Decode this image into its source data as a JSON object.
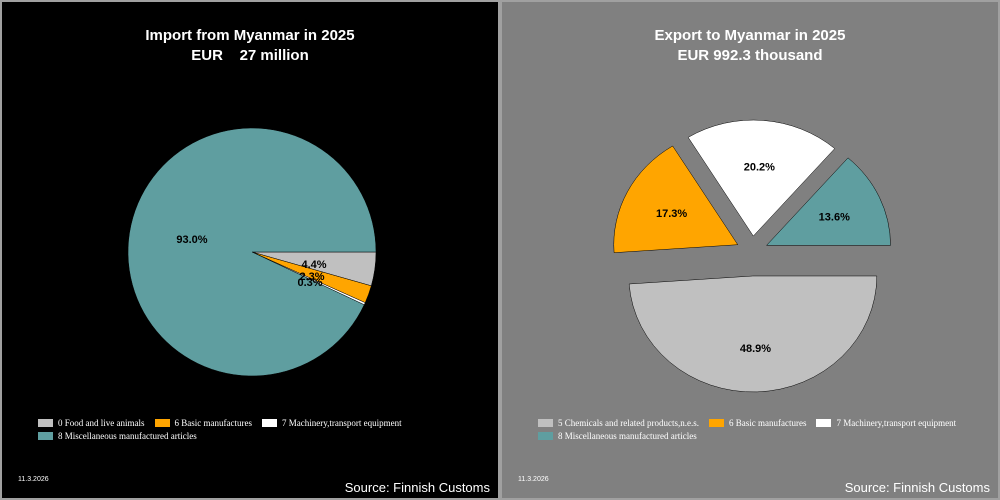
{
  "colors": {
    "food": "#c0c0c0",
    "basic": "#ffa500",
    "machinery": "#ffffff",
    "misc": "#5f9ea0",
    "chemicals": "#c0c0c0"
  },
  "chart_data": [
    {
      "type": "pie",
      "title": "Import from Myanmar in 2025",
      "subtitle": "EUR    27 million",
      "slices": [
        {
          "label": "0 Food and live animals",
          "value": 4.4,
          "label_text": "4.4%",
          "color": "#c0c0c0"
        },
        {
          "label": "6 Basic manufactures",
          "value": 2.3,
          "label_text": "2.3%",
          "color": "#ffa500"
        },
        {
          "label": "7 Machinery,transport equipment",
          "value": 0.3,
          "label_text": "0.3%",
          "color": "#ffffff"
        },
        {
          "label": "8 Miscellaneous manufactured articles",
          "value": 93.0,
          "label_text": "93.0%",
          "color": "#5f9ea0"
        }
      ],
      "date": "11.3.2026",
      "source": "Source: Finnish Customs"
    },
    {
      "type": "pie",
      "title": "Export to Myanmar in 2025",
      "subtitle": "EUR 992.3 thousand",
      "slices": [
        {
          "label": "5 Chemicals and related products,n.e.s.",
          "value": 48.9,
          "label_text": "48.9%",
          "color": "#c0c0c0"
        },
        {
          "label": "6 Basic manufactures",
          "value": 17.3,
          "label_text": "17.3%",
          "color": "#ffa500"
        },
        {
          "label": "7 Machinery,transport equipment",
          "value": 20.2,
          "label_text": "20.2%",
          "color": "#ffffff"
        },
        {
          "label": "8 Miscellaneous manufactured articles",
          "value": 13.6,
          "label_text": "13.6%",
          "color": "#5f9ea0"
        }
      ],
      "date": "11.3.2026",
      "source": "Source: Finnish Customs"
    }
  ]
}
